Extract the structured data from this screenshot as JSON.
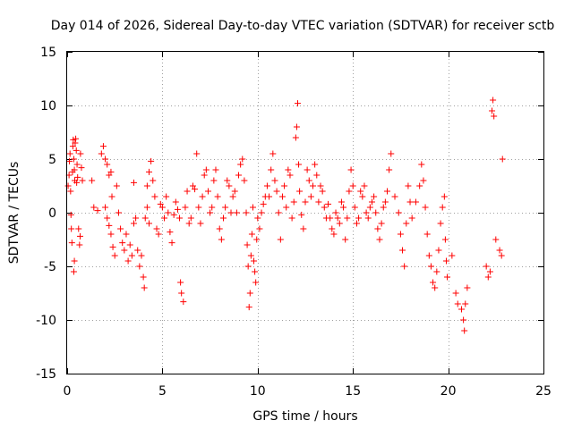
{
  "chart_data": {
    "type": "scatter",
    "title": "Day 014 of 2026, Sidereal Day-to-day VTEC variation (SDTVAR) for receiver sctb",
    "xlabel": "GPS time / hours",
    "ylabel": "SDTVAR / TECUs",
    "xlim": [
      0,
      25
    ],
    "ylim": [
      -15,
      15
    ],
    "xticks": [
      0,
      5,
      10,
      15,
      20,
      25
    ],
    "xtick_labels": [
      "0",
      "5",
      "10",
      "15",
      "20",
      "25"
    ],
    "yticks": [
      -15,
      -10,
      -5,
      0,
      5,
      10,
      15
    ],
    "ytick_labels": [
      "-15",
      "-10",
      "-5",
      "0",
      "5",
      "10",
      "15"
    ],
    "grid": true,
    "marker": "+",
    "color": "#ff0000",
    "series": [
      {
        "name": "SDTVAR",
        "points": [
          [
            0.05,
            2.5
          ],
          [
            0.1,
            3.5
          ],
          [
            0.12,
            4.8
          ],
          [
            0.15,
            5.5
          ],
          [
            0.18,
            2.0
          ],
          [
            0.2,
            -0.2
          ],
          [
            0.22,
            -1.5
          ],
          [
            0.25,
            -2.8
          ],
          [
            0.28,
            3.8
          ],
          [
            0.3,
            6.2
          ],
          [
            0.32,
            6.8
          ],
          [
            0.35,
            5.0
          ],
          [
            0.38,
            4.0
          ],
          [
            0.4,
            3.0
          ],
          [
            0.42,
            6.5
          ],
          [
            0.45,
            6.9
          ],
          [
            0.48,
            5.8
          ],
          [
            0.5,
            2.8
          ],
          [
            0.52,
            4.5
          ],
          [
            0.55,
            3.3
          ],
          [
            0.38,
            -4.5
          ],
          [
            0.35,
            -5.5
          ],
          [
            0.6,
            -1.5
          ],
          [
            0.65,
            -3.0
          ],
          [
            0.7,
            5.5
          ],
          [
            0.75,
            4.2
          ],
          [
            0.8,
            3.0
          ],
          [
            0.68,
            -2.2
          ],
          [
            1.3,
            3.0
          ],
          [
            1.4,
            0.5
          ],
          [
            1.6,
            0.2
          ],
          [
            1.8,
            5.5
          ],
          [
            1.9,
            6.2
          ],
          [
            2.0,
            5.0
          ],
          [
            2.1,
            4.5
          ],
          [
            2.2,
            3.5
          ],
          [
            2.3,
            3.8
          ],
          [
            2.0,
            0.5
          ],
          [
            2.1,
            -0.5
          ],
          [
            2.2,
            -1.2
          ],
          [
            2.3,
            -2.0
          ],
          [
            2.4,
            -3.2
          ],
          [
            2.5,
            -4.0
          ],
          [
            2.35,
            1.5
          ],
          [
            2.6,
            2.5
          ],
          [
            2.7,
            0.0
          ],
          [
            2.8,
            -1.5
          ],
          [
            2.9,
            -2.8
          ],
          [
            3.0,
            -3.5
          ],
          [
            3.1,
            -2.0
          ],
          [
            3.2,
            -4.5
          ],
          [
            3.3,
            -3.0
          ],
          [
            3.4,
            -4.0
          ],
          [
            3.5,
            -1.0
          ],
          [
            3.5,
            2.8
          ],
          [
            3.6,
            -0.5
          ],
          [
            3.7,
            -3.5
          ],
          [
            3.8,
            -5.0
          ],
          [
            3.9,
            -4.0
          ],
          [
            4.0,
            -6.0
          ],
          [
            4.05,
            -7.0
          ],
          [
            4.1,
            -0.5
          ],
          [
            4.2,
            0.5
          ],
          [
            4.3,
            -1.0
          ],
          [
            4.2,
            2.5
          ],
          [
            4.3,
            3.8
          ],
          [
            4.4,
            4.8
          ],
          [
            4.5,
            3.0
          ],
          [
            4.6,
            1.5
          ],
          [
            4.7,
            -1.5
          ],
          [
            4.8,
            -2.0
          ],
          [
            4.9,
            0.8
          ],
          [
            5.0,
            0.5
          ],
          [
            5.1,
            -0.5
          ],
          [
            5.2,
            1.5
          ],
          [
            5.3,
            0.0
          ],
          [
            5.4,
            -1.8
          ],
          [
            5.5,
            -2.8
          ],
          [
            5.6,
            -0.2
          ],
          [
            5.7,
            1.0
          ],
          [
            5.8,
            0.3
          ],
          [
            5.9,
            -0.5
          ],
          [
            5.95,
            -6.5
          ],
          [
            6.0,
            -7.5
          ],
          [
            6.1,
            -8.3
          ],
          [
            6.2,
            0.5
          ],
          [
            6.3,
            2.0
          ],
          [
            6.4,
            -1.0
          ],
          [
            6.5,
            -0.5
          ],
          [
            6.6,
            2.5
          ],
          [
            6.7,
            2.2
          ],
          [
            6.8,
            5.5
          ],
          [
            6.9,
            0.5
          ],
          [
            7.0,
            -1.0
          ],
          [
            7.1,
            1.5
          ],
          [
            7.2,
            3.5
          ],
          [
            7.3,
            4.0
          ],
          [
            7.4,
            2.0
          ],
          [
            7.5,
            0.0
          ],
          [
            7.6,
            0.5
          ],
          [
            7.7,
            3.0
          ],
          [
            7.8,
            4.0
          ],
          [
            7.9,
            1.5
          ],
          [
            8.0,
            -1.5
          ],
          [
            8.1,
            -2.5
          ],
          [
            8.2,
            -0.5
          ],
          [
            8.3,
            0.5
          ],
          [
            8.4,
            3.0
          ],
          [
            8.5,
            2.5
          ],
          [
            8.6,
            0.0
          ],
          [
            8.7,
            1.5
          ],
          [
            8.8,
            2.0
          ],
          [
            8.9,
            0.0
          ],
          [
            9.0,
            3.5
          ],
          [
            9.1,
            4.5
          ],
          [
            9.2,
            5.0
          ],
          [
            9.3,
            3.0
          ],
          [
            9.4,
            0.0
          ],
          [
            9.45,
            -3.0
          ],
          [
            9.5,
            -5.0
          ],
          [
            9.55,
            -8.8
          ],
          [
            9.6,
            -7.5
          ],
          [
            9.65,
            -4.0
          ],
          [
            9.7,
            -2.0
          ],
          [
            9.75,
            0.5
          ],
          [
            9.8,
            -4.5
          ],
          [
            9.85,
            -5.5
          ],
          [
            9.9,
            -6.5
          ],
          [
            9.95,
            -2.5
          ],
          [
            10.0,
            -0.5
          ],
          [
            10.1,
            -1.5
          ],
          [
            10.2,
            0.0
          ],
          [
            10.3,
            0.8
          ],
          [
            10.4,
            1.5
          ],
          [
            10.5,
            2.5
          ],
          [
            10.6,
            1.5
          ],
          [
            10.7,
            4.0
          ],
          [
            10.8,
            5.5
          ],
          [
            10.9,
            3.0
          ],
          [
            11.0,
            2.0
          ],
          [
            11.1,
            0.0
          ],
          [
            11.2,
            -2.5
          ],
          [
            11.3,
            1.5
          ],
          [
            11.4,
            2.5
          ],
          [
            11.5,
            0.5
          ],
          [
            11.6,
            4.0
          ],
          [
            11.7,
            3.5
          ],
          [
            11.8,
            -0.5
          ],
          [
            11.9,
            1.0
          ],
          [
            12.0,
            7.0
          ],
          [
            12.05,
            8.0
          ],
          [
            12.1,
            10.2
          ],
          [
            12.15,
            4.5
          ],
          [
            12.2,
            2.0
          ],
          [
            12.3,
            -0.2
          ],
          [
            12.4,
            -1.5
          ],
          [
            12.5,
            1.0
          ],
          [
            12.6,
            4.0
          ],
          [
            12.7,
            3.0
          ],
          [
            12.8,
            1.5
          ],
          [
            12.9,
            2.5
          ],
          [
            13.0,
            4.5
          ],
          [
            13.1,
            3.5
          ],
          [
            13.2,
            1.0
          ],
          [
            13.3,
            2.5
          ],
          [
            13.4,
            2.0
          ],
          [
            13.5,
            0.5
          ],
          [
            13.6,
            -0.5
          ],
          [
            13.7,
            0.8
          ],
          [
            13.8,
            -0.5
          ],
          [
            13.9,
            -1.5
          ],
          [
            14.0,
            -2.0
          ],
          [
            14.1,
            0.0
          ],
          [
            14.2,
            -0.5
          ],
          [
            14.3,
            -1.0
          ],
          [
            14.4,
            1.0
          ],
          [
            14.5,
            0.5
          ],
          [
            14.6,
            -2.5
          ],
          [
            14.7,
            -0.5
          ],
          [
            14.8,
            2.0
          ],
          [
            14.9,
            4.0
          ],
          [
            15.0,
            2.5
          ],
          [
            15.1,
            0.5
          ],
          [
            15.2,
            -1.0
          ],
          [
            15.3,
            -0.5
          ],
          [
            15.4,
            2.0
          ],
          [
            15.5,
            1.5
          ],
          [
            15.6,
            2.5
          ],
          [
            15.7,
            0.0
          ],
          [
            15.8,
            -0.5
          ],
          [
            15.9,
            0.5
          ],
          [
            16.0,
            1.0
          ],
          [
            16.1,
            1.5
          ],
          [
            16.2,
            0.0
          ],
          [
            16.3,
            -1.5
          ],
          [
            16.4,
            -2.5
          ],
          [
            16.5,
            -1.0
          ],
          [
            16.6,
            0.5
          ],
          [
            16.7,
            1.0
          ],
          [
            16.8,
            2.0
          ],
          [
            16.9,
            4.0
          ],
          [
            17.0,
            5.5
          ],
          [
            17.2,
            1.5
          ],
          [
            17.4,
            0.0
          ],
          [
            17.5,
            -2.0
          ],
          [
            17.6,
            -3.5
          ],
          [
            17.7,
            -5.0
          ],
          [
            17.8,
            -1.0
          ],
          [
            17.9,
            2.5
          ],
          [
            18.0,
            1.0
          ],
          [
            18.1,
            -0.5
          ],
          [
            18.3,
            1.0
          ],
          [
            18.5,
            2.5
          ],
          [
            18.6,
            4.5
          ],
          [
            18.7,
            3.0
          ],
          [
            18.8,
            0.5
          ],
          [
            18.9,
            -2.0
          ],
          [
            19.0,
            -4.0
          ],
          [
            19.1,
            -5.0
          ],
          [
            19.2,
            -6.5
          ],
          [
            19.3,
            -7.0
          ],
          [
            19.4,
            -5.5
          ],
          [
            19.5,
            -3.5
          ],
          [
            19.6,
            -1.0
          ],
          [
            19.7,
            0.5
          ],
          [
            19.8,
            1.5
          ],
          [
            19.85,
            -2.5
          ],
          [
            19.9,
            -4.5
          ],
          [
            19.95,
            -6.0
          ],
          [
            20.2,
            -4.0
          ],
          [
            20.4,
            -7.5
          ],
          [
            20.5,
            -8.5
          ],
          [
            20.7,
            -9.0
          ],
          [
            20.8,
            -10.0
          ],
          [
            20.85,
            -11.0
          ],
          [
            20.9,
            -8.5
          ],
          [
            21.0,
            -7.0
          ],
          [
            22.0,
            -5.0
          ],
          [
            22.1,
            -6.0
          ],
          [
            22.2,
            -5.5
          ],
          [
            22.3,
            9.5
          ],
          [
            22.35,
            10.5
          ],
          [
            22.4,
            9.0
          ],
          [
            22.5,
            -2.5
          ],
          [
            22.7,
            -3.5
          ],
          [
            22.8,
            -4.0
          ],
          [
            22.85,
            5.0
          ]
        ]
      }
    ]
  }
}
